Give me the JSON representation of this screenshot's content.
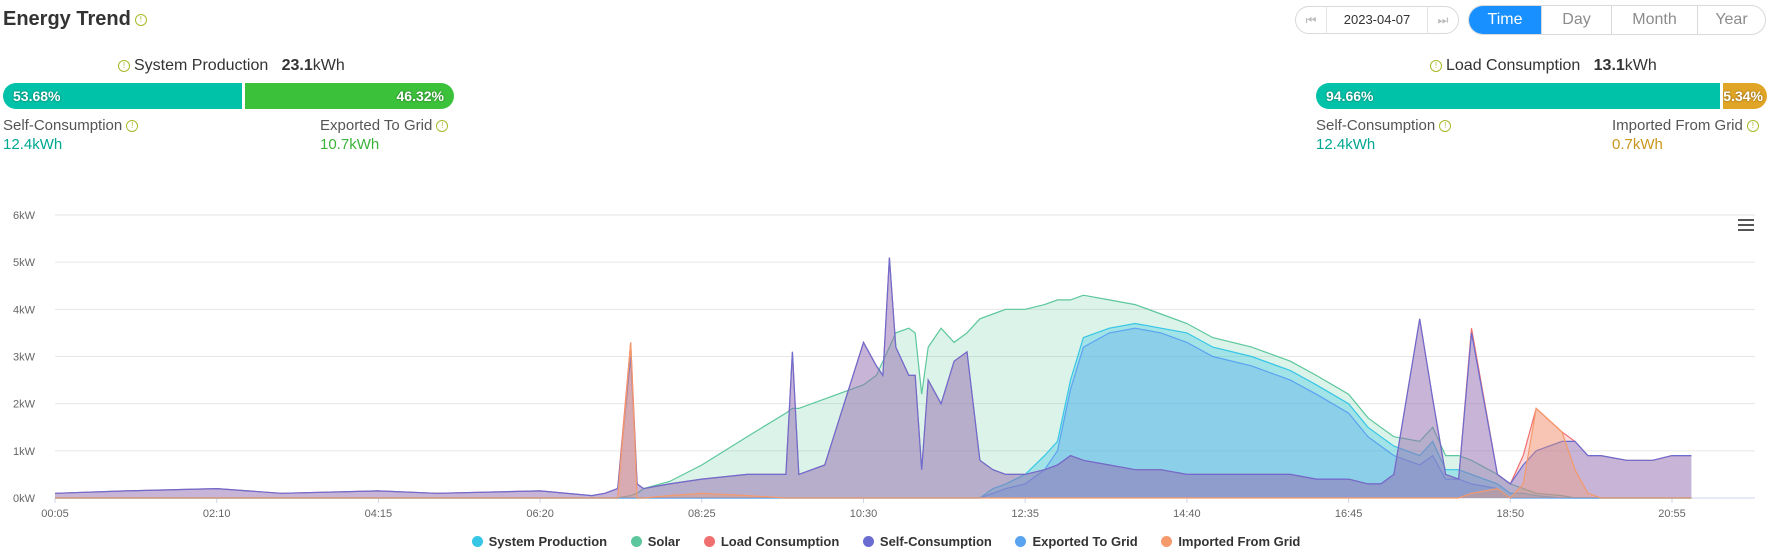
{
  "header": {
    "title": "Energy Trend",
    "info_glyph": "!"
  },
  "date_picker": {
    "date": "2023-04-07",
    "prev_glyph": "⏮",
    "next_glyph": "⏭"
  },
  "period_tabs": [
    {
      "label": "Time",
      "active": true
    },
    {
      "label": "Day",
      "active": false
    },
    {
      "label": "Month",
      "active": false
    },
    {
      "label": "Year",
      "active": false
    }
  ],
  "production": {
    "label": "System Production",
    "value": "23.1",
    "unit": "kWh",
    "self_pct": "53.68%",
    "export_pct": "46.32%",
    "self_fraction": 0.5368,
    "self_label": "Self-Consumption",
    "self_value": "12.4",
    "self_unit": "kWh",
    "export_label": "Exported To Grid",
    "export_value": "10.7",
    "export_unit": "kWh"
  },
  "consumption": {
    "label": "Load Consumption",
    "value": "13.1",
    "unit": "kWh",
    "self_pct": "94.66%",
    "import_pct": "5.34%",
    "self_fraction": 0.9466,
    "self_label": "Self-Consumption",
    "self_value": "12.4",
    "self_unit": "kWh",
    "import_label": "Imported From Grid",
    "import_value": "0.7",
    "import_unit": "kWh"
  },
  "colors": {
    "self": "#00c2a8",
    "export": "#3cc13b",
    "import": "#e0a526",
    "system_production": "#36c6e6",
    "solar": "#5cc79c",
    "load": "#f0706f",
    "self_consumption": "#6b6cd1",
    "exported": "#5aa3f0",
    "imported": "#f49a6b"
  },
  "chart_data": {
    "type": "area",
    "x": [
      "00:05",
      "01:00",
      "02:10",
      "03:00",
      "04:15",
      "05:00",
      "06:20",
      "07:00",
      "07:10",
      "07:20",
      "07:30",
      "07:35",
      "07:40",
      "08:00",
      "08:25",
      "09:00",
      "09:30",
      "09:35",
      "09:40",
      "10:00",
      "10:30",
      "10:40",
      "10:45",
      "10:50",
      "10:55",
      "11:05",
      "11:10",
      "11:15",
      "11:20",
      "11:30",
      "11:40",
      "11:50",
      "12:00",
      "12:10",
      "12:20",
      "12:35",
      "12:50",
      "13:00",
      "13:10",
      "13:20",
      "13:40",
      "14:00",
      "14:20",
      "14:40",
      "15:00",
      "15:30",
      "16:00",
      "16:20",
      "16:45",
      "17:00",
      "17:10",
      "17:20",
      "17:40",
      "17:50",
      "18:00",
      "18:10",
      "18:20",
      "18:40",
      "18:45",
      "18:50",
      "19:00",
      "19:10",
      "19:30",
      "19:40",
      "19:50",
      "20:00",
      "20:20",
      "20:40",
      "20:55",
      "21:10"
    ],
    "series": [
      {
        "name": "Solar",
        "values": [
          0,
          0,
          0,
          0,
          0,
          0,
          0,
          0,
          0,
          0,
          0.05,
          0.1,
          0.2,
          0.35,
          0.7,
          1.3,
          1.8,
          1.9,
          1.9,
          2.1,
          2.4,
          2.6,
          2.9,
          3.2,
          3.5,
          3.6,
          3.5,
          2.2,
          3.2,
          3.6,
          3.3,
          3.5,
          3.8,
          3.9,
          4.0,
          4.0,
          4.1,
          4.2,
          4.2,
          4.3,
          4.2,
          4.1,
          3.9,
          3.7,
          3.4,
          3.2,
          2.9,
          2.6,
          2.2,
          1.7,
          1.5,
          1.3,
          1.2,
          1.5,
          0.9,
          0.9,
          0.8,
          0.5,
          0.4,
          0.3,
          0.2,
          0.1,
          0.05,
          0,
          0,
          0,
          0,
          0,
          0,
          0
        ]
      },
      {
        "name": "System Production",
        "values": [
          0,
          0,
          0,
          0,
          0,
          0,
          0,
          0,
          0,
          0,
          0,
          0,
          0,
          0,
          0,
          0,
          0,
          0,
          0,
          0,
          0,
          0,
          0,
          0,
          0,
          0,
          0,
          0,
          0,
          0,
          0,
          0,
          0,
          0.2,
          0.3,
          0.5,
          0.9,
          1.2,
          2.5,
          3.4,
          3.6,
          3.7,
          3.6,
          3.5,
          3.2,
          3.0,
          2.7,
          2.4,
          2.0,
          1.5,
          1.3,
          1.1,
          0.9,
          1.2,
          0.6,
          0.6,
          0.5,
          0.3,
          0.2,
          0.1,
          0.1,
          0.05,
          0,
          0,
          0,
          0,
          0,
          0,
          0,
          0
        ]
      },
      {
        "name": "Exported To Grid",
        "values": [
          0,
          0,
          0,
          0,
          0,
          0,
          0,
          0,
          0,
          0,
          0,
          0,
          0,
          0,
          0,
          0,
          0,
          0,
          0,
          0,
          0,
          0,
          0,
          0,
          0,
          0,
          0,
          0,
          0,
          0,
          0,
          0,
          0,
          0.1,
          0.2,
          0.3,
          0.6,
          1.0,
          2.3,
          3.2,
          3.5,
          3.6,
          3.5,
          3.3,
          3.0,
          2.8,
          2.5,
          2.2,
          1.8,
          1.3,
          1.1,
          0.9,
          0.7,
          0.9,
          0.4,
          0.4,
          0.3,
          0.2,
          0.1,
          0,
          0,
          0,
          0,
          0,
          0,
          0,
          0,
          0,
          0,
          0
        ]
      },
      {
        "name": "Load Consumption",
        "values": [
          0.1,
          0.15,
          0.2,
          0.1,
          0.15,
          0.1,
          0.15,
          0.05,
          0.1,
          0.2,
          3.3,
          0.3,
          0.2,
          0.3,
          0.4,
          0.5,
          0.5,
          3.1,
          0.5,
          0.7,
          3.3,
          2.8,
          2.6,
          5.1,
          3.2,
          2.6,
          2.6,
          0.6,
          2.5,
          2.0,
          2.9,
          3.1,
          0.8,
          0.6,
          0.5,
          0.5,
          0.6,
          0.7,
          0.9,
          0.8,
          0.7,
          0.6,
          0.6,
          0.5,
          0.5,
          0.5,
          0.5,
          0.4,
          0.4,
          0.3,
          0.3,
          0.5,
          3.8,
          2.1,
          0.5,
          0.4,
          3.6,
          0.5,
          0.4,
          0.3,
          0.9,
          1.9,
          1.4,
          1.2,
          0.9,
          0.9,
          0.8,
          0.8,
          0.9,
          0.9
        ]
      },
      {
        "name": "Self-Consumption",
        "values": [
          0.1,
          0.15,
          0.2,
          0.1,
          0.15,
          0.1,
          0.15,
          0.05,
          0.1,
          0.2,
          3.0,
          0.3,
          0.2,
          0.3,
          0.4,
          0.5,
          0.5,
          3.1,
          0.5,
          0.7,
          3.3,
          2.8,
          2.6,
          5.1,
          3.2,
          2.6,
          2.6,
          0.6,
          2.5,
          2.0,
          2.9,
          3.1,
          0.8,
          0.6,
          0.5,
          0.5,
          0.6,
          0.7,
          0.9,
          0.8,
          0.7,
          0.6,
          0.6,
          0.5,
          0.5,
          0.5,
          0.5,
          0.4,
          0.4,
          0.3,
          0.3,
          0.5,
          3.8,
          2.1,
          0.5,
          0.4,
          3.5,
          0.5,
          0.4,
          0.3,
          0.7,
          1.0,
          1.2,
          1.2,
          0.9,
          0.9,
          0.8,
          0.8,
          0.9,
          0.9
        ]
      },
      {
        "name": "Imported From Grid",
        "values": [
          0,
          0,
          0,
          0,
          0,
          0,
          0,
          0,
          0,
          0,
          3.3,
          0,
          0,
          0.05,
          0.1,
          0.05,
          0,
          0,
          0,
          0,
          0,
          0,
          0,
          0,
          0,
          0,
          0,
          0,
          0,
          0,
          0,
          0,
          0,
          0,
          0,
          0,
          0,
          0,
          0,
          0,
          0,
          0,
          0,
          0,
          0,
          0,
          0,
          0,
          0,
          0,
          0,
          0,
          0,
          0,
          0,
          0,
          0.1,
          0.2,
          0.1,
          0,
          0.3,
          1.9,
          1.4,
          0.6,
          0.1,
          0,
          0,
          0,
          0,
          0
        ]
      }
    ],
    "xticks": [
      "00:05",
      "02:10",
      "04:15",
      "06:20",
      "08:25",
      "10:30",
      "12:35",
      "14:40",
      "16:45",
      "18:50",
      "20:55"
    ],
    "yticks": [
      "0kW",
      "1kW",
      "2kW",
      "3kW",
      "4kW",
      "5kW",
      "6kW"
    ],
    "ylim": [
      0,
      6
    ],
    "grid": true,
    "legend_position": "bottom",
    "legend": [
      "System Production",
      "Solar",
      "Load Consumption",
      "Self-Consumption",
      "Exported To Grid",
      "Imported From Grid"
    ]
  }
}
